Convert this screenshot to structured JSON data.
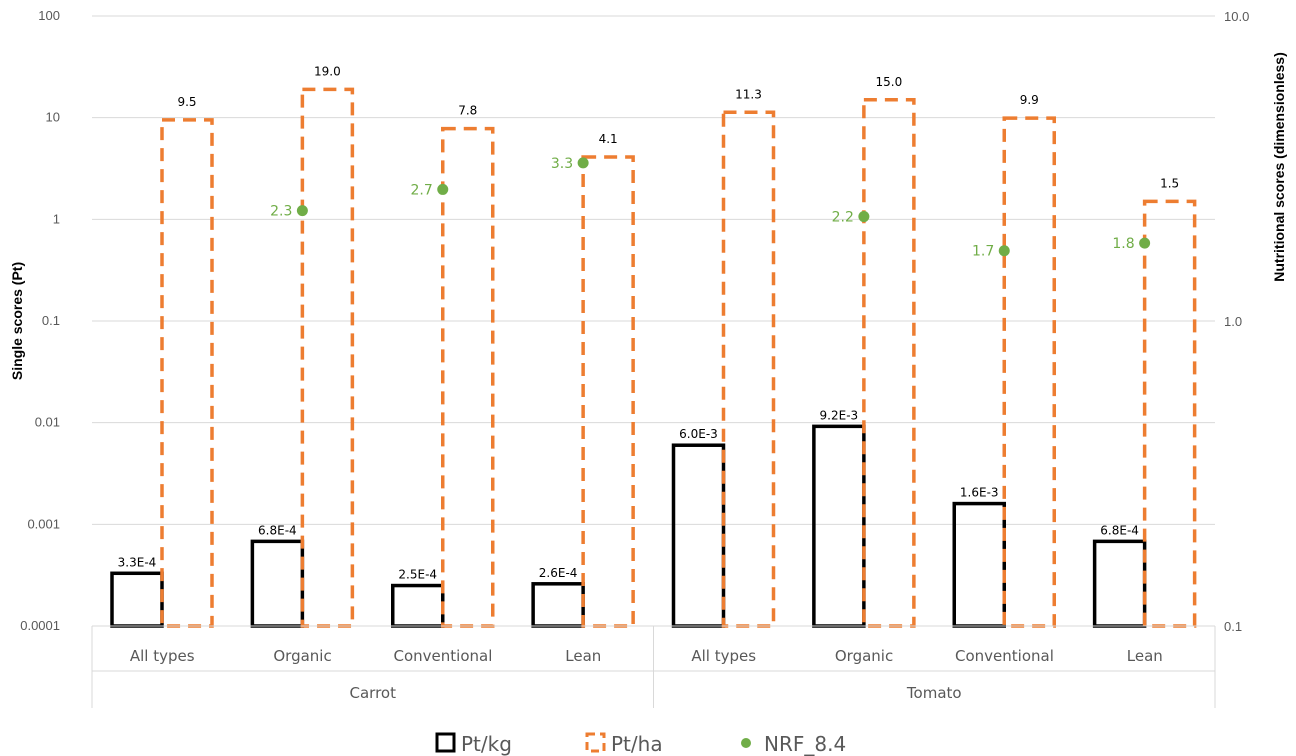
{
  "chart_data": {
    "type": "bar",
    "groups": [
      {
        "name": "Carrot",
        "categories": [
          "All types",
          "Organic",
          "Conventional",
          "Lean"
        ]
      },
      {
        "name": "Tomato",
        "categories": [
          "All types",
          "Organic",
          "Conventional",
          "Lean"
        ]
      }
    ],
    "y_left": {
      "label": "Single scores (Pt)",
      "scale": "log",
      "range": [
        0.0001,
        100
      ],
      "ticks": [
        "0.0001",
        "0.001",
        "0.01",
        "0.1",
        "1",
        "10",
        "100"
      ]
    },
    "y_right": {
      "label": "Nutritional scores (dimensionless)",
      "scale": "log",
      "range": [
        0.1,
        10
      ],
      "ticks": [
        "0.1",
        "1.0",
        "10.0"
      ]
    },
    "series": [
      {
        "name": "Pt/kg",
        "kind": "bar",
        "axis": "left",
        "color": "#000000",
        "values": [
          0.00033,
          0.00068,
          0.00025,
          0.00026,
          0.006,
          0.0092,
          0.0016,
          0.00068
        ],
        "labels": [
          "3.3E-4",
          "6.8E-4",
          "2.5E-4",
          "2.6E-4",
          "6.0E-3",
          "9.2E-3",
          "1.6E-3",
          "6.8E-4"
        ]
      },
      {
        "name": "Pt/ha",
        "kind": "bar",
        "axis": "left",
        "color": "#ED7D31",
        "values": [
          9.5,
          19.0,
          7.8,
          4.1,
          11.3,
          15.0,
          9.9,
          1.5
        ],
        "labels": [
          "9.5",
          "19.0",
          "7.8",
          "4.1",
          "11.3",
          "15.0",
          "9.9",
          "1.5"
        ]
      },
      {
        "name": "NRF_8.4",
        "kind": "scatter",
        "axis": "right",
        "color": "#70AD47",
        "values": [
          null,
          2.3,
          2.7,
          3.3,
          null,
          2.2,
          1.7,
          1.8
        ],
        "labels": [
          "",
          "2.3",
          "2.7",
          "3.3",
          "",
          "2.2",
          "1.7",
          "1.8"
        ]
      }
    ],
    "grid": true,
    "legend": "bottom"
  }
}
